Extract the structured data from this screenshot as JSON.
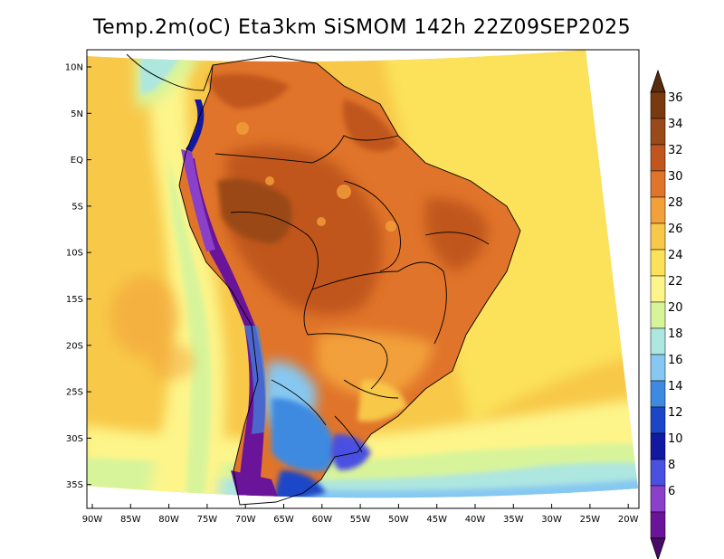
{
  "title": "Temp.2m(oC) Eta3km SiSMOM 142h 22Z09SEP2025",
  "lat_labels": [
    "10N",
    "5N",
    "EQ",
    "5S",
    "10S",
    "15S",
    "20S",
    "25S",
    "30S",
    "35S"
  ],
  "lon_labels": [
    "90W",
    "85W",
    "80W",
    "75W",
    "70W",
    "65W",
    "60W",
    "55W",
    "50W",
    "45W",
    "40W",
    "35W",
    "30W",
    "25W",
    "20W"
  ],
  "colorbar": {
    "labels": [
      "36",
      "34",
      "32",
      "30",
      "28",
      "26",
      "24",
      "22",
      "20",
      "18",
      "16",
      "14",
      "12",
      "10",
      "8",
      "6"
    ],
    "colors": [
      "#7a3a10",
      "#9a4a18",
      "#c0561e",
      "#e0742a",
      "#f2a03a",
      "#f8c848",
      "#fbe25a",
      "#fdf58a",
      "#d8f49a",
      "#aee6e0",
      "#86c8f2",
      "#3e8ae0",
      "#1c46c8",
      "#1218a0",
      "#4a50e0",
      "#8a40c8",
      "#6a149a"
    ],
    "lower_arrow": "#4a0a6a",
    "upper_arrow": "#5a2a10"
  }
}
